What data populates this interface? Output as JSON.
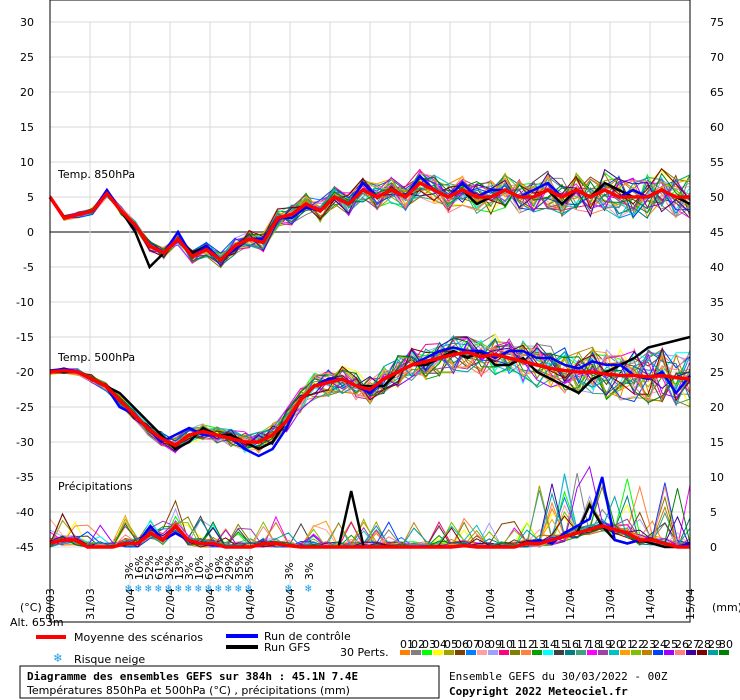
{
  "chart_data": {
    "type": "line",
    "x_dates": [
      "30/03",
      "31/03",
      "01/04",
      "02/04",
      "03/04",
      "04/04",
      "05/04",
      "06/04",
      "07/04",
      "08/04",
      "09/04",
      "10/04",
      "11/04",
      "12/04",
      "13/04",
      "14/04",
      "15/04"
    ],
    "left_axis": {
      "unit": "(°C)",
      "ticks": [
        30,
        25,
        20,
        15,
        10,
        5,
        0,
        -5,
        -10,
        -15,
        -20,
        -25,
        -30,
        -35,
        -40,
        -45
      ]
    },
    "right_axis": {
      "unit": "(mm)",
      "ticks": [
        75,
        70,
        65,
        60,
        55,
        50,
        45,
        40,
        35,
        30,
        25,
        20,
        15,
        10,
        5,
        0
      ]
    },
    "panel_labels": {
      "t850": "Temp. 850hPa",
      "t500": "Temp. 500hPa",
      "precip": "Précipitations"
    },
    "snow_risk_labels": [
      "3%",
      "16%",
      "52%",
      "61%",
      "32%",
      "13%",
      "3%",
      "10%",
      "6%",
      "19%",
      "29%",
      "35%",
      "35%",
      "3%",
      "3%"
    ],
    "snow_risk_x": [
      2.0,
      2.25,
      2.5,
      2.75,
      3.0,
      3.25,
      3.5,
      3.75,
      4.0,
      4.25,
      4.5,
      4.75,
      5.0,
      6.0,
      6.5
    ],
    "series": [
      {
        "name": "Moyenne des scénarios",
        "color": "#ff0000",
        "t850": [
          5,
          2,
          2.5,
          3,
          5.5,
          3,
          1,
          -2,
          -3,
          -1,
          -3.5,
          -2.5,
          -4,
          -2,
          -1,
          -1.5,
          2,
          2.5,
          4,
          3,
          5,
          4,
          6,
          5,
          6,
          5,
          7,
          6,
          5,
          6,
          5,
          5,
          6,
          5,
          5,
          6,
          5,
          6,
          5,
          6,
          5,
          5,
          5,
          6,
          5,
          5
        ],
        "t500": [
          -20,
          -19.8,
          -20,
          -21,
          -22,
          -24,
          -26,
          -28,
          -29.5,
          -30.5,
          -29,
          -28.5,
          -29,
          -29.5,
          -30,
          -30,
          -29,
          -27,
          -24,
          -22,
          -21.5,
          -21,
          -22,
          -22.5,
          -21,
          -20,
          -19,
          -18.5,
          -18,
          -17.5,
          -17.2,
          -17.8,
          -17.5,
          -18,
          -18.5,
          -19,
          -19.5,
          -19.8,
          -20,
          -20,
          -20.3,
          -20.5,
          -20.5,
          -20.7,
          -20.5,
          -20.8,
          -21
        ],
        "precip": [
          0.5,
          1,
          1,
          0,
          0,
          0,
          0.5,
          0.5,
          2,
          1,
          3,
          1,
          0.5,
          0.5,
          0,
          0,
          0,
          0.5,
          0.5,
          0.2,
          0,
          0,
          0,
          0,
          0,
          0,
          0,
          0,
          0,
          0,
          0,
          0,
          0,
          0.2,
          0,
          0,
          0,
          0,
          0.5,
          0.5,
          1,
          1.5,
          2,
          2.5,
          3,
          2.5,
          2,
          1,
          1,
          0.5,
          0,
          0
        ]
      },
      {
        "name": "Run de contrôle",
        "color": "#0000ff",
        "t850": [
          5,
          2,
          2.5,
          3,
          6,
          3,
          1,
          -2,
          -3,
          0,
          -3.5,
          -2,
          -4,
          -2.5,
          -1,
          -1,
          2,
          2,
          3.5,
          3,
          5,
          4,
          7,
          5,
          6,
          5,
          8,
          6,
          5,
          7,
          5,
          6,
          6,
          5,
          6,
          7,
          5,
          6,
          5,
          6,
          5,
          6,
          5,
          6,
          5,
          5
        ],
        "t500": [
          -20,
          -19.5,
          -20,
          -21,
          -22,
          -25,
          -26,
          -28,
          -30,
          -29,
          -28,
          -29,
          -29,
          -29.5,
          -31,
          -32,
          -31,
          -28,
          -24,
          -22,
          -21,
          -21,
          -22,
          -23,
          -21,
          -20,
          -19,
          -18,
          -17,
          -16.5,
          -17,
          -17,
          -18,
          -17,
          -17,
          -18,
          -18,
          -19,
          -19.5,
          -18.5,
          -19,
          -19,
          -20.5,
          -21,
          -20,
          -23,
          -20.5
        ],
        "precip": [
          0.5,
          1,
          1,
          0,
          0,
          0,
          0.5,
          0.5,
          3,
          1,
          2,
          1,
          0.5,
          0.3,
          0,
          0,
          0,
          0.5,
          0.5,
          0.2,
          0,
          0,
          0,
          0,
          0,
          0,
          0,
          0,
          0,
          0,
          0,
          0,
          0,
          0.2,
          0,
          0,
          0,
          0,
          0.5,
          1,
          0.5,
          2,
          3,
          4,
          10,
          1,
          0.5,
          1,
          1,
          0.5,
          0,
          0.5
        ]
      },
      {
        "name": "Run GFS",
        "color": "#000000",
        "t850": [
          5,
          2,
          2.5,
          3,
          5.5,
          3,
          0,
          -5,
          -3,
          -1,
          -3,
          -2,
          -4,
          -2,
          -1,
          -1.5,
          2,
          2.5,
          4,
          3,
          5,
          4,
          6,
          5,
          6,
          5,
          7,
          6,
          5,
          6,
          4,
          5,
          6,
          5,
          5,
          6,
          4,
          6,
          5,
          7,
          6,
          5,
          5,
          6,
          5,
          4
        ],
        "t500": [
          -20,
          -20,
          -20,
          -21,
          -22,
          -23,
          -25,
          -27,
          -29,
          -31,
          -30,
          -28,
          -29,
          -29,
          -30,
          -31,
          -30,
          -27,
          -24,
          -22,
          -21,
          -21,
          -22,
          -22,
          -22,
          -20,
          -19,
          -19,
          -18,
          -17,
          -18,
          -17,
          -19,
          -19,
          -18,
          -20,
          -21,
          -22,
          -23,
          -21,
          -20,
          -19,
          -18,
          -16.5,
          -16,
          -15.5,
          -15
        ],
        "precip": [
          0.5,
          1,
          1,
          0,
          0,
          0,
          0.5,
          0.5,
          2,
          1,
          2,
          1,
          0.5,
          0.5,
          0,
          0,
          0,
          0.5,
          0.5,
          0.2,
          0,
          0,
          0,
          0,
          8,
          0,
          0,
          0,
          0,
          0,
          0,
          0,
          0,
          0.2,
          0,
          0,
          0,
          0,
          0.5,
          0.5,
          1,
          1.5,
          2,
          6,
          3,
          1,
          0.5,
          1,
          0.5,
          0,
          0,
          0
        ]
      }
    ],
    "perturbations": {
      "label": "30 Perts.",
      "names": [
        "01",
        "02",
        "03",
        "04",
        "05",
        "06",
        "07",
        "08",
        "09",
        "10",
        "11",
        "12",
        "13",
        "14",
        "15",
        "16",
        "17",
        "18",
        "19",
        "20",
        "21",
        "22",
        "23",
        "24",
        "25",
        "26",
        "27",
        "28",
        "29",
        "30"
      ],
      "colors": [
        "#ff8000",
        "#808080",
        "#00ff00",
        "#ffff00",
        "#a0a000",
        "#804000",
        "#0080ff",
        "#ffa0a0",
        "#a0a0ff",
        "#ff0080",
        "#808000",
        "#ff8040",
        "#00a000",
        "#00ffff",
        "#404040",
        "#008080",
        "#40a080",
        "#ff00ff",
        "#a040a0",
        "#00c0c0",
        "#ffa000",
        "#80c000",
        "#c08000",
        "#0040ff",
        "#a000ff",
        "#ff8080",
        "#4000a0",
        "#800000",
        "#00a0a0",
        "#008000"
      ]
    }
  },
  "legend": {
    "mean": "Moyenne des scénarios",
    "control": "Run de contrôle",
    "gfs": "Run GFS",
    "snow": "Risque neige",
    "altitude": "Alt. 653m"
  },
  "footer": {
    "title": "Diagramme des ensembles GEFS sur 384h : 45.1N 7.4E",
    "subtitle": "Températures 850hPa et 500hPa (°C) , précipitations (mm)",
    "run": "Ensemble GEFS du 30/03/2022 - 00Z",
    "copyright": "Copyright 2022 Meteociel.fr"
  },
  "colors": {
    "mean": "#ff0000",
    "control": "#0000ff",
    "gfs": "#000000",
    "snow": "#1a9be8"
  }
}
